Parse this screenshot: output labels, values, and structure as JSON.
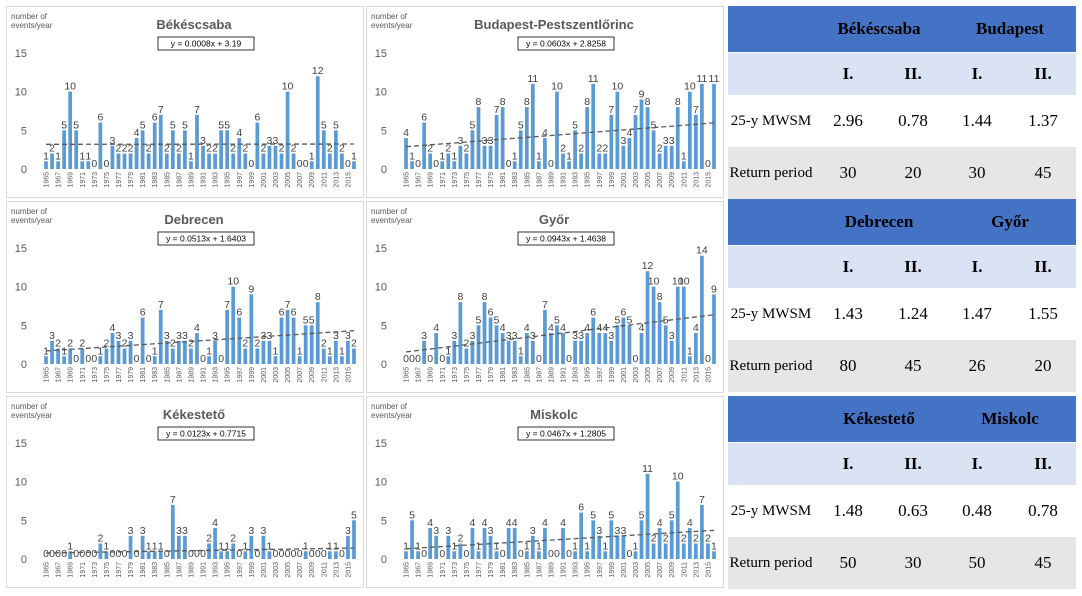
{
  "axis_label": "number of\nevents/year",
  "chart_data": [
    {
      "type": "bar",
      "title": "Békéscsaba",
      "equation": "y = 0.0008x + 3.19",
      "slope": 0.0008,
      "intercept": 3.19,
      "ylim": [
        0,
        15
      ],
      "yticks": [
        0,
        5,
        10,
        15
      ],
      "years": [
        1965,
        1966,
        1967,
        1968,
        1969,
        1970,
        1971,
        1972,
        1973,
        1974,
        1975,
        1976,
        1977,
        1978,
        1979,
        1980,
        1981,
        1982,
        1983,
        1984,
        1985,
        1986,
        1987,
        1988,
        1989,
        1990,
        1991,
        1992,
        1993,
        1994,
        1995,
        1996,
        1997,
        1998,
        1999,
        2000,
        2001,
        2002,
        2003,
        2004,
        2005,
        2006,
        2007,
        2008,
        2009,
        2010,
        2011,
        2012,
        2013,
        2014,
        2015,
        2016
      ],
      "values": [
        1,
        2,
        1,
        5,
        10,
        5,
        1,
        1,
        0,
        6,
        0,
        3,
        2,
        2,
        2,
        4,
        5,
        2,
        6,
        7,
        2,
        5,
        2,
        5,
        1,
        7,
        3,
        2,
        2,
        5,
        5,
        2,
        4,
        2,
        0,
        6,
        2,
        3,
        3,
        2,
        10,
        2,
        0,
        0,
        1,
        12,
        5,
        2,
        5,
        2,
        0,
        1
      ]
    },
    {
      "type": "bar",
      "title": "Budapest-Pestszentlőrinc",
      "equation": "y = 0.0603x + 2.8258",
      "slope": 0.0603,
      "intercept": 2.8258,
      "ylim": [
        0,
        15
      ],
      "yticks": [
        0,
        5,
        10,
        15
      ],
      "years": [
        1965,
        1966,
        1967,
        1968,
        1969,
        1970,
        1971,
        1972,
        1973,
        1974,
        1975,
        1976,
        1977,
        1978,
        1979,
        1980,
        1981,
        1982,
        1983,
        1984,
        1985,
        1986,
        1987,
        1988,
        1989,
        1990,
        1991,
        1992,
        1993,
        1994,
        1995,
        1996,
        1997,
        1998,
        1999,
        2000,
        2001,
        2002,
        2003,
        2004,
        2005,
        2006,
        2007,
        2008,
        2009,
        2010,
        2011,
        2012,
        2013,
        2014,
        2015,
        2016
      ],
      "values": [
        4,
        1,
        0,
        6,
        2,
        0,
        1,
        2,
        1,
        3,
        2,
        5,
        8,
        3,
        3,
        7,
        8,
        0,
        1,
        5,
        8,
        11,
        1,
        4,
        0,
        10,
        2,
        1,
        5,
        2,
        8,
        11,
        2,
        2,
        7,
        10,
        3,
        4,
        7,
        9,
        8,
        5,
        2,
        3,
        3,
        8,
        1,
        10,
        7,
        11,
        0,
        11
      ]
    },
    {
      "type": "bar",
      "title": "Debrecen",
      "equation": "y = 0.0513x + 1.6403",
      "slope": 0.0513,
      "intercept": 1.6403,
      "ylim": [
        0,
        15
      ],
      "yticks": [
        0,
        5,
        10,
        15
      ],
      "years": [
        1965,
        1966,
        1967,
        1968,
        1969,
        1970,
        1971,
        1972,
        1973,
        1974,
        1975,
        1976,
        1977,
        1978,
        1979,
        1980,
        1981,
        1982,
        1983,
        1984,
        1985,
        1986,
        1987,
        1988,
        1989,
        1990,
        1991,
        1992,
        1993,
        1994,
        1995,
        1996,
        1997,
        1998,
        1999,
        2000,
        2001,
        2002,
        2003,
        2004,
        2005,
        2006,
        2007,
        2008,
        2009,
        2010,
        2011,
        2012,
        2013,
        2014,
        2015,
        2016
      ],
      "values": [
        1,
        3,
        2,
        1,
        2,
        0,
        2,
        0,
        0,
        1,
        2,
        4,
        3,
        2,
        3,
        0,
        6,
        0,
        1,
        7,
        3,
        2,
        3,
        3,
        2,
        4,
        0,
        1,
        3,
        0,
        7,
        10,
        6,
        2,
        9,
        2,
        3,
        3,
        1,
        6,
        7,
        6,
        1,
        5,
        5,
        8,
        2,
        1,
        3,
        1,
        3,
        2
      ]
    },
    {
      "type": "bar",
      "title": "Győr",
      "equation": "y = 0.0943x + 1.4638",
      "slope": 0.0943,
      "intercept": 1.4638,
      "ylim": [
        0,
        15
      ],
      "yticks": [
        0,
        5,
        10,
        15
      ],
      "years": [
        1965,
        1966,
        1967,
        1968,
        1969,
        1970,
        1971,
        1972,
        1973,
        1974,
        1975,
        1976,
        1977,
        1978,
        1979,
        1980,
        1981,
        1982,
        1983,
        1984,
        1985,
        1986,
        1987,
        1988,
        1989,
        1990,
        1991,
        1992,
        1993,
        1994,
        1995,
        1996,
        1997,
        1998,
        1999,
        2000,
        2001,
        2002,
        2003,
        2004,
        2005,
        2006,
        2007,
        2008,
        2009,
        2010,
        2011,
        2012,
        2013,
        2014,
        2015,
        2016
      ],
      "values": [
        0,
        0,
        0,
        3,
        0,
        4,
        0,
        1,
        3,
        8,
        2,
        3,
        5,
        8,
        6,
        5,
        4,
        3,
        3,
        1,
        4,
        3,
        0,
        7,
        4,
        5,
        4,
        0,
        3,
        3,
        4,
        6,
        4,
        4,
        3,
        5,
        6,
        5,
        0,
        4,
        12,
        10,
        8,
        5,
        3,
        10,
        10,
        1,
        4,
        14,
        0,
        9
      ]
    },
    {
      "type": "bar",
      "title": "Kékestető",
      "equation": "y = 0.0123x + 0.7715",
      "slope": 0.0123,
      "intercept": 0.7715,
      "ylim": [
        0,
        15
      ],
      "yticks": [
        0,
        5,
        10,
        15
      ],
      "years": [
        1965,
        1966,
        1967,
        1968,
        1969,
        1970,
        1971,
        1972,
        1973,
        1974,
        1975,
        1976,
        1977,
        1978,
        1979,
        1980,
        1981,
        1982,
        1983,
        1984,
        1985,
        1986,
        1987,
        1988,
        1989,
        1990,
        1991,
        1992,
        1993,
        1994,
        1995,
        1996,
        1997,
        1998,
        1999,
        2000,
        2001,
        2002,
        2003,
        2004,
        2005,
        2006,
        2007,
        2008,
        2009,
        2010,
        2011,
        2012,
        2013,
        2014,
        2015,
        2016
      ],
      "values": [
        0,
        0,
        0,
        0,
        1,
        0,
        0,
        0,
        0,
        2,
        1,
        0,
        0,
        0,
        3,
        0,
        3,
        1,
        1,
        1,
        0,
        7,
        3,
        3,
        0,
        0,
        0,
        2,
        4,
        1,
        1,
        2,
        0,
        1,
        3,
        0,
        3,
        1,
        0,
        0,
        0,
        0,
        0,
        1,
        0,
        0,
        0,
        1,
        1,
        0,
        3,
        5
      ]
    },
    {
      "type": "bar",
      "title": "Miskolc",
      "equation": "y = 0.0467x + 1.2805",
      "slope": 0.0467,
      "intercept": 1.2805,
      "ylim": [
        0,
        15
      ],
      "yticks": [
        0,
        5,
        10,
        15
      ],
      "years": [
        1965,
        1966,
        1967,
        1968,
        1969,
        1970,
        1971,
        1972,
        1973,
        1974,
        1975,
        1976,
        1977,
        1978,
        1979,
        1980,
        1981,
        1982,
        1983,
        1984,
        1985,
        1986,
        1987,
        1988,
        1989,
        1990,
        1991,
        1992,
        1993,
        1994,
        1995,
        1996,
        1997,
        1998,
        1999,
        2000,
        2001,
        2002,
        2003,
        2004,
        2005,
        2006,
        2007,
        2008,
        2009,
        2010,
        2011,
        2012,
        2013,
        2014,
        2015,
        2016
      ],
      "values": [
        1,
        5,
        1,
        0,
        4,
        3,
        0,
        3,
        1,
        2,
        0,
        4,
        1,
        4,
        3,
        1,
        0,
        4,
        4,
        0,
        1,
        3,
        1,
        4,
        0,
        0,
        4,
        0,
        1,
        6,
        1,
        5,
        3,
        1,
        5,
        3,
        3,
        0,
        1,
        5,
        11,
        2,
        4,
        2,
        5,
        10,
        2,
        4,
        2,
        7,
        2,
        1
      ]
    }
  ],
  "tables": [
    {
      "stations": [
        "Békéscsaba",
        "Budapest"
      ],
      "periods": [
        "I.",
        "II.",
        "I.",
        "II."
      ],
      "row1_label": "25-y MWSM",
      "row1": [
        "2.96",
        "0.78",
        "1.44",
        "1.37"
      ],
      "row2_label": "Return period",
      "row2": [
        "30",
        "20",
        "30",
        "45"
      ]
    },
    {
      "stations": [
        "Debrecen",
        "Győr"
      ],
      "periods": [
        "I.",
        "II.",
        "I.",
        "II."
      ],
      "row1_label": "25-y MWSM",
      "row1": [
        "1.43",
        "1.24",
        "1.47",
        "1.55"
      ],
      "row2_label": "Return period",
      "row2": [
        "80",
        "45",
        "26",
        "20"
      ]
    },
    {
      "stations": [
        "Kékestető",
        "Miskolc"
      ],
      "periods": [
        "I.",
        "II.",
        "I.",
        "II."
      ],
      "row1_label": "25-y MWSM",
      "row1": [
        "1.48",
        "0.63",
        "0.48",
        "0.78"
      ],
      "row2_label": "Return period",
      "row2": [
        "50",
        "30",
        "50",
        "45"
      ]
    }
  ],
  "colors": {
    "bar": "#5b9bd5",
    "trend": "#595959",
    "header": "#4472c4",
    "subheader": "#dae3f3",
    "grayrow": "#e6e6e6"
  }
}
